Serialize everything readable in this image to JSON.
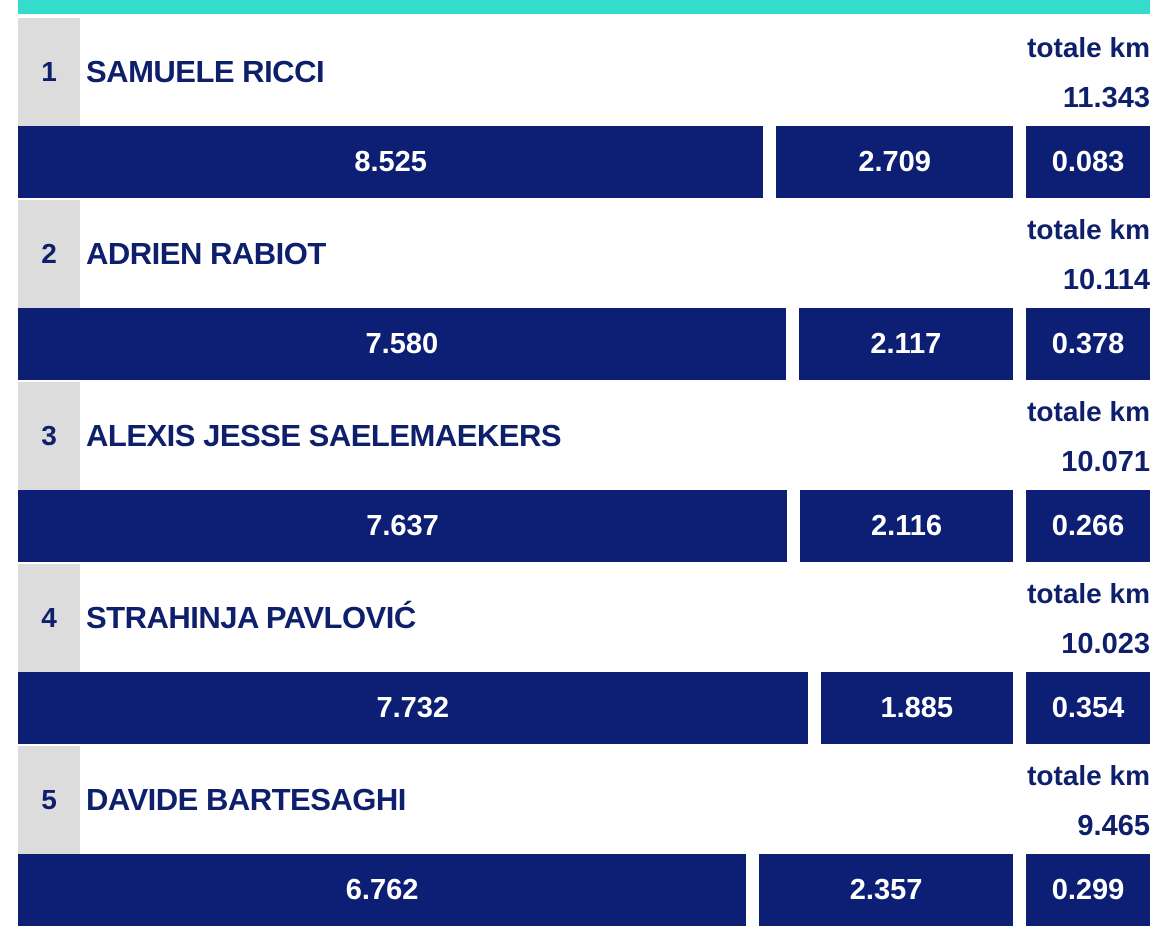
{
  "rows": [
    {
      "rank": 1,
      "name": "SAMUELE RICCI",
      "total_label": "totale km",
      "total": "11.343",
      "segments": [
        "8.525",
        "2.709",
        "0.083"
      ]
    },
    {
      "rank": 2,
      "name": "ADRIEN RABIOT",
      "total_label": "totale km",
      "total": "10.114",
      "segments": [
        "7.580",
        "2.117",
        "0.378"
      ]
    },
    {
      "rank": 3,
      "name": "ALEXIS JESSE SAELEMAEKERS",
      "total_label": "totale km",
      "total": "10.071",
      "segments": [
        "7.637",
        "2.116",
        "0.266"
      ]
    },
    {
      "rank": 4,
      "name": "STRAHINJA PAVLOVIĆ",
      "total_label": "totale km",
      "total": "10.023",
      "segments": [
        "7.732",
        "1.885",
        "0.354"
      ]
    },
    {
      "rank": 5,
      "name": "DAVIDE BARTESAGHI",
      "total_label": "totale km",
      "total": "9.465",
      "segments": [
        "6.762",
        "2.357",
        "0.299"
      ]
    }
  ]
}
